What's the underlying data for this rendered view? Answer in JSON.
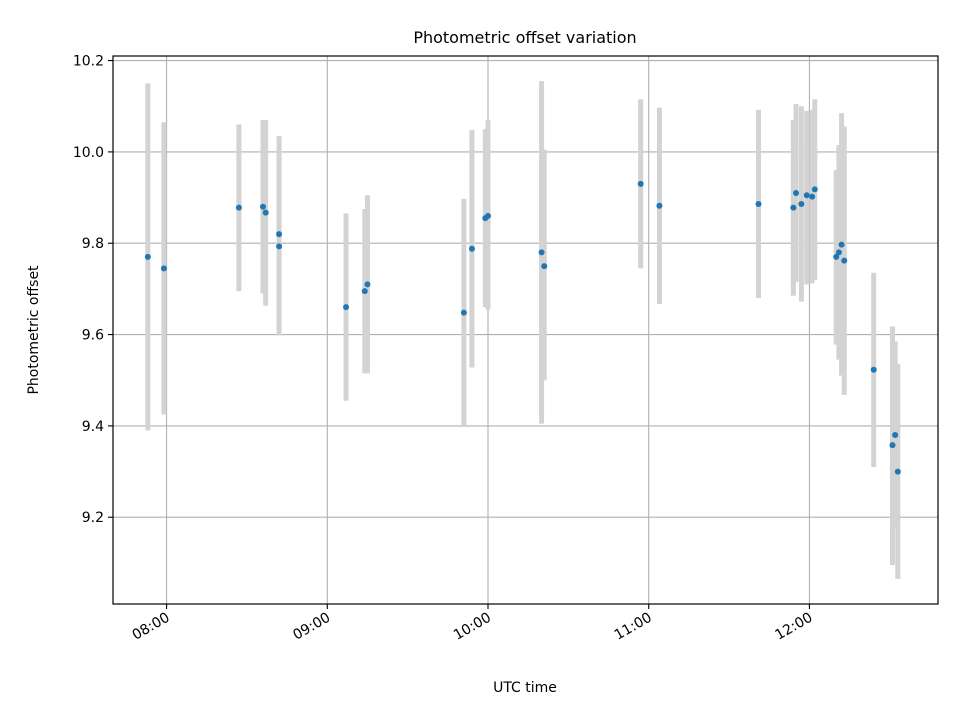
{
  "chart_data": {
    "type": "scatter",
    "title": "Photometric offset variation",
    "xlabel": "UTC time",
    "ylabel": "Photometric offset",
    "x_ticks": [
      "08:00",
      "09:00",
      "10:00",
      "11:00",
      "12:00"
    ],
    "y_ticks": [
      "9.2",
      "9.4",
      "9.6",
      "9.8",
      "10.0",
      "10.2"
    ],
    "xlim": [
      "07:40",
      "12:48"
    ],
    "ylim": [
      9.01,
      10.21
    ],
    "grid": true,
    "colors": {
      "marker": "#1f77b4",
      "errorbar": "#d3d3d3",
      "grid": "#b0b0b0"
    },
    "points": [
      {
        "t": "07:53",
        "y": 9.77,
        "lo": 9.39,
        "hi": 10.15
      },
      {
        "t": "07:59",
        "y": 9.745,
        "lo": 9.425,
        "hi": 10.065
      },
      {
        "t": "08:27",
        "y": 9.878,
        "lo": 9.695,
        "hi": 10.06
      },
      {
        "t": "08:36",
        "y": 9.88,
        "lo": 9.69,
        "hi": 10.07
      },
      {
        "t": "08:37",
        "y": 9.867,
        "lo": 9.663,
        "hi": 10.07
      },
      {
        "t": "08:42",
        "y": 9.82,
        "lo": 9.6,
        "hi": 10.035
      },
      {
        "t": "08:42",
        "y": 9.793,
        "lo": 9.598,
        "hi": 9.99
      },
      {
        "t": "09:07",
        "y": 9.66,
        "lo": 9.455,
        "hi": 9.865
      },
      {
        "t": "09:14",
        "y": 9.695,
        "lo": 9.515,
        "hi": 9.875
      },
      {
        "t": "09:15",
        "y": 9.71,
        "lo": 9.515,
        "hi": 9.905
      },
      {
        "t": "09:51",
        "y": 9.648,
        "lo": 9.4,
        "hi": 9.897
      },
      {
        "t": "09:54",
        "y": 9.788,
        "lo": 9.528,
        "hi": 10.048
      },
      {
        "t": "09:59",
        "y": 9.855,
        "lo": 9.66,
        "hi": 10.05
      },
      {
        "t": "10:00",
        "y": 9.86,
        "lo": 9.655,
        "hi": 10.07
      },
      {
        "t": "10:20",
        "y": 9.78,
        "lo": 9.405,
        "hi": 10.155
      },
      {
        "t": "10:21",
        "y": 9.75,
        "lo": 9.5,
        "hi": 10.005
      },
      {
        "t": "10:57",
        "y": 9.93,
        "lo": 9.745,
        "hi": 10.115
      },
      {
        "t": "11:04",
        "y": 9.882,
        "lo": 9.667,
        "hi": 10.097
      },
      {
        "t": "11:41",
        "y": 9.886,
        "lo": 9.68,
        "hi": 10.092
      },
      {
        "t": "11:54",
        "y": 9.878,
        "lo": 9.685,
        "hi": 10.07
      },
      {
        "t": "11:55",
        "y": 9.91,
        "lo": 9.715,
        "hi": 10.105
      },
      {
        "t": "11:57",
        "y": 9.886,
        "lo": 9.672,
        "hi": 10.1
      },
      {
        "t": "11:59",
        "y": 9.905,
        "lo": 9.71,
        "hi": 10.09
      },
      {
        "t": "12:01",
        "y": 9.902,
        "lo": 9.712,
        "hi": 10.092
      },
      {
        "t": "12:02",
        "y": 9.918,
        "lo": 9.72,
        "hi": 10.115
      },
      {
        "t": "12:10",
        "y": 9.77,
        "lo": 9.578,
        "hi": 9.96
      },
      {
        "t": "12:11",
        "y": 9.78,
        "lo": 9.545,
        "hi": 10.015
      },
      {
        "t": "12:12",
        "y": 9.797,
        "lo": 9.51,
        "hi": 10.085
      },
      {
        "t": "12:13",
        "y": 9.762,
        "lo": 9.468,
        "hi": 10.056
      },
      {
        "t": "12:24",
        "y": 9.523,
        "lo": 9.31,
        "hi": 9.735
      },
      {
        "t": "12:31",
        "y": 9.358,
        "lo": 9.095,
        "hi": 9.618
      },
      {
        "t": "12:32",
        "y": 9.38,
        "lo": 9.175,
        "hi": 9.585
      },
      {
        "t": "12:33",
        "y": 9.3,
        "lo": 9.065,
        "hi": 9.535
      }
    ]
  }
}
